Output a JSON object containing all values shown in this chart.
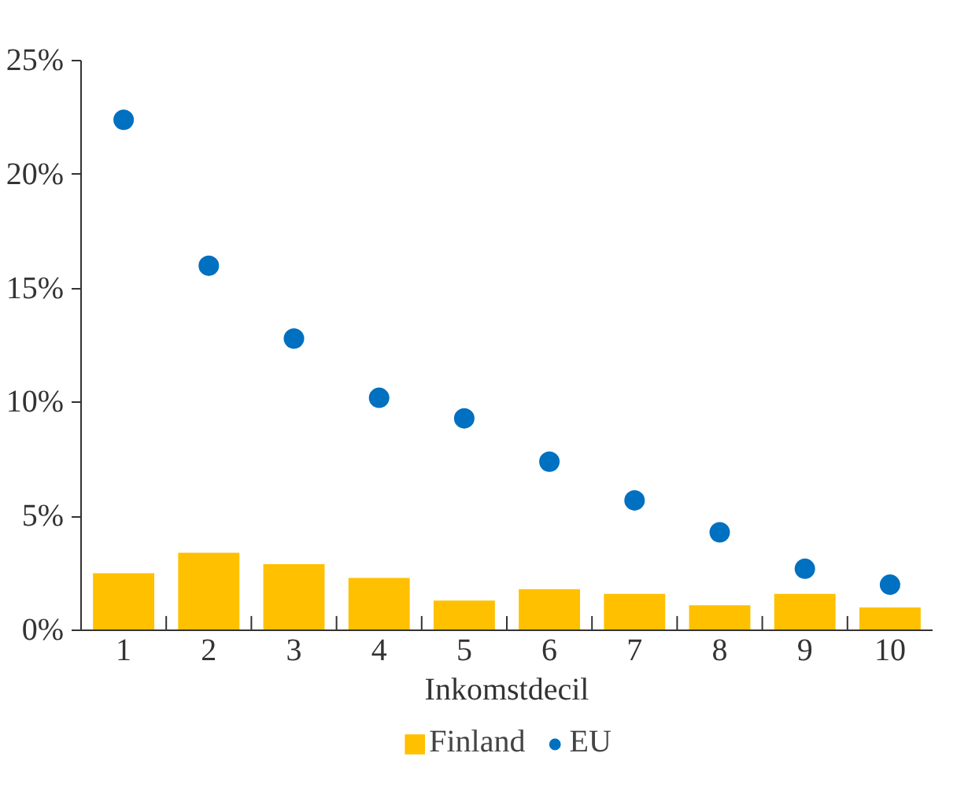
{
  "chart_data": {
    "type": "bar",
    "xlabel": "Inkomstdecil",
    "categories": [
      "1",
      "2",
      "3",
      "4",
      "5",
      "6",
      "7",
      "8",
      "9",
      "10"
    ],
    "series": [
      {
        "name": "Finland",
        "color": "#ffc000",
        "values": [
          2.5,
          3.4,
          2.9,
          2.3,
          1.3,
          1.8,
          1.6,
          1.1,
          1.6,
          1.0
        ]
      },
      {
        "name": "EU",
        "type": "scatter",
        "color": "#0070c0",
        "values": [
          22.4,
          16.0,
          12.8,
          10.2,
          9.3,
          7.4,
          5.7,
          4.3,
          2.7,
          2.0
        ]
      }
    ],
    "ylim": [
      0,
      25
    ],
    "yticks": [
      {
        "value": 0,
        "label": "0%"
      },
      {
        "value": 5,
        "label": "5%"
      },
      {
        "value": 10,
        "label": "10%"
      },
      {
        "value": 15,
        "label": "15%"
      },
      {
        "value": 20,
        "label": "20%"
      },
      {
        "value": 25,
        "label": "25%"
      }
    ],
    "grid": false,
    "legend": "bottom",
    "marker": "circle"
  }
}
